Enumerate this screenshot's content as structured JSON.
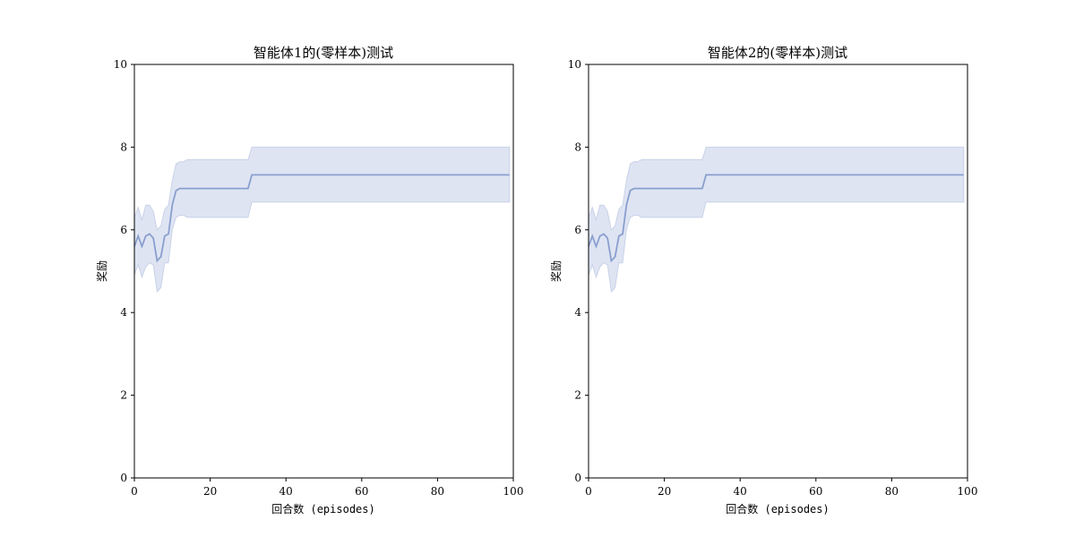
{
  "chart_data": [
    {
      "type": "line",
      "title": "智能体1的(零样本)测试",
      "xlabel": "回合数 (episodes)",
      "ylabel": "奖励",
      "xlim": [
        0,
        100
      ],
      "ylim": [
        0,
        10
      ],
      "xticks": [
        0,
        20,
        40,
        60,
        80,
        100
      ],
      "yticks": [
        0,
        2,
        4,
        6,
        8,
        10
      ],
      "grid": false,
      "colors": {
        "line": "#8a9fcf",
        "band": "#8a9fcf"
      },
      "series": [
        {
          "x": [
            0,
            1,
            2,
            3,
            4,
            5,
            6,
            7,
            8,
            9,
            10,
            11,
            12,
            13,
            14,
            15,
            16,
            20,
            25,
            30,
            31,
            35,
            40,
            50,
            60,
            70,
            80,
            90,
            99
          ],
          "mean": [
            5.6,
            5.85,
            5.6,
            5.85,
            5.9,
            5.8,
            5.25,
            5.35,
            5.85,
            5.9,
            6.6,
            6.95,
            7.0,
            7.0,
            7.0,
            7.0,
            7.0,
            7.0,
            7.0,
            7.0,
            7.33,
            7.33,
            7.33,
            7.33,
            7.33,
            7.33,
            7.33,
            7.33,
            7.33
          ],
          "upper": [
            6.3,
            6.55,
            6.25,
            6.6,
            6.6,
            6.45,
            6.0,
            6.1,
            6.5,
            6.6,
            7.2,
            7.6,
            7.65,
            7.65,
            7.7,
            7.7,
            7.7,
            7.7,
            7.7,
            7.7,
            8.0,
            8.0,
            8.0,
            8.0,
            8.0,
            8.0,
            8.0,
            8.0,
            8.0
          ],
          "lower": [
            4.9,
            5.15,
            4.85,
            5.1,
            5.2,
            5.15,
            4.5,
            4.6,
            5.2,
            5.2,
            6.0,
            6.3,
            6.35,
            6.35,
            6.3,
            6.3,
            6.3,
            6.3,
            6.3,
            6.3,
            6.67,
            6.67,
            6.67,
            6.67,
            6.67,
            6.67,
            6.67,
            6.67,
            6.67
          ]
        }
      ]
    },
    {
      "type": "line",
      "title": "智能体2的(零样本)测试",
      "xlabel": "回合数 (episodes)",
      "ylabel": "奖励",
      "xlim": [
        0,
        100
      ],
      "ylim": [
        0,
        10
      ],
      "xticks": [
        0,
        20,
        40,
        60,
        80,
        100
      ],
      "yticks": [
        0,
        2,
        4,
        6,
        8,
        10
      ],
      "grid": false,
      "colors": {
        "line": "#8a9fcf",
        "band": "#8a9fcf"
      },
      "series": [
        {
          "x": [
            0,
            1,
            2,
            3,
            4,
            5,
            6,
            7,
            8,
            9,
            10,
            11,
            12,
            13,
            14,
            15,
            16,
            20,
            25,
            30,
            31,
            35,
            40,
            50,
            60,
            70,
            80,
            90,
            99
          ],
          "mean": [
            5.6,
            5.85,
            5.6,
            5.85,
            5.9,
            5.8,
            5.25,
            5.35,
            5.85,
            5.9,
            6.6,
            6.95,
            7.0,
            7.0,
            7.0,
            7.0,
            7.0,
            7.0,
            7.0,
            7.0,
            7.33,
            7.33,
            7.33,
            7.33,
            7.33,
            7.33,
            7.33,
            7.33,
            7.33
          ],
          "upper": [
            6.3,
            6.55,
            6.25,
            6.6,
            6.6,
            6.45,
            6.0,
            6.1,
            6.5,
            6.6,
            7.2,
            7.6,
            7.65,
            7.65,
            7.7,
            7.7,
            7.7,
            7.7,
            7.7,
            7.7,
            8.0,
            8.0,
            8.0,
            8.0,
            8.0,
            8.0,
            8.0,
            8.0,
            8.0
          ],
          "lower": [
            4.9,
            5.15,
            4.85,
            5.1,
            5.2,
            5.15,
            4.5,
            4.6,
            5.2,
            5.2,
            6.0,
            6.3,
            6.35,
            6.35,
            6.3,
            6.3,
            6.3,
            6.3,
            6.3,
            6.3,
            6.67,
            6.67,
            6.67,
            6.67,
            6.67,
            6.67,
            6.67,
            6.67,
            6.67
          ]
        }
      ]
    }
  ]
}
